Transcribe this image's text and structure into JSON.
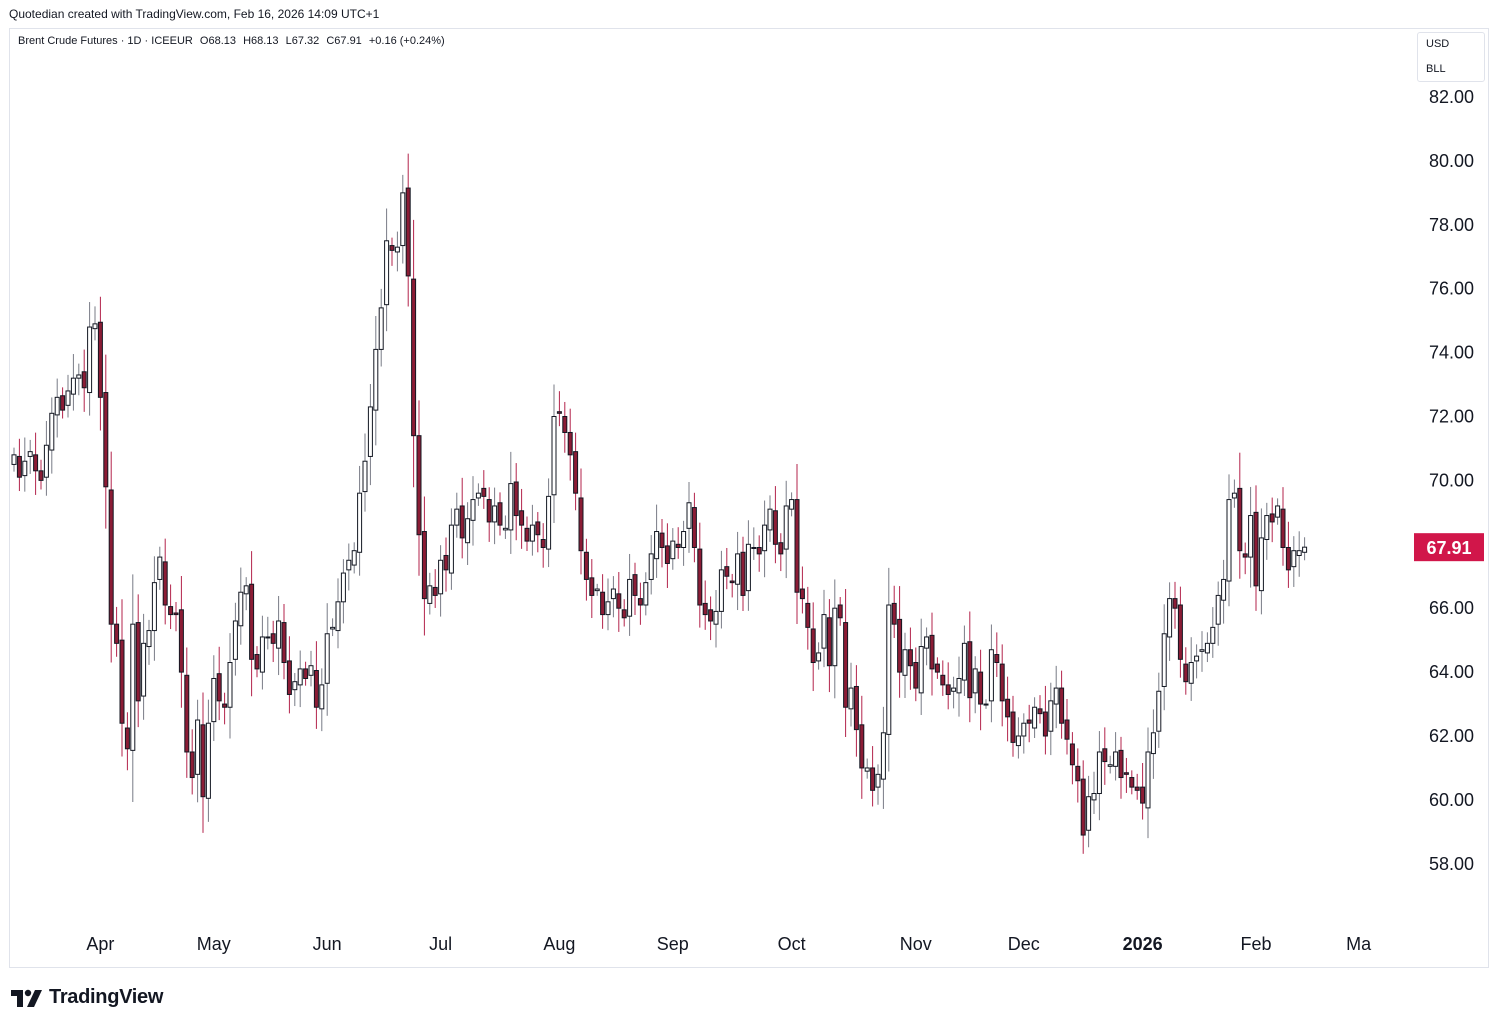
{
  "header": {
    "credit": "Quotedian created with TradingView.com, Feb 16, 2026 14:09 UTC+1"
  },
  "legend": {
    "symbol": "Brent Crude Futures · 1D · ICEEUR",
    "open": "O68.13",
    "high": "H68.13",
    "low": "L67.32",
    "close": "C67.91",
    "change": "+0.16 (+0.24%)"
  },
  "currency": {
    "unit": "USD",
    "sub_unit": "BLL"
  },
  "last_price": {
    "label": "67.91",
    "value": 67.91,
    "color": "#d1164a"
  },
  "brand": {
    "name": "TradingView"
  },
  "colors": {
    "up_body": "#ffffff",
    "down_body": "#8b1c35",
    "outline": "#131722",
    "down_wick": "#b3234b",
    "up_wick": "#787b86"
  },
  "chart_data": {
    "type": "candlestick",
    "title": "Brent Crude Futures · 1D · ICEEUR",
    "ylim": [
      56,
      84
    ],
    "y_ticks": [
      58,
      60,
      62,
      64,
      66,
      68,
      70,
      72,
      74,
      76,
      78,
      80,
      82
    ],
    "y_tick_labels": [
      "58.00",
      "60.00",
      "62.00",
      "64.00",
      "66.00",
      "68.00",
      "70.00",
      "72.00",
      "74.00",
      "76.00",
      "78.00",
      "80.00",
      "82.00"
    ],
    "x_labels": [
      {
        "label": "Apr",
        "index": 16,
        "bold": false
      },
      {
        "label": "May",
        "index": 37,
        "bold": false
      },
      {
        "label": "Jun",
        "index": 58,
        "bold": false
      },
      {
        "label": "Jul",
        "index": 79,
        "bold": false
      },
      {
        "label": "Aug",
        "index": 101,
        "bold": false
      },
      {
        "label": "Sep",
        "index": 122,
        "bold": false
      },
      {
        "label": "Oct",
        "index": 144,
        "bold": false
      },
      {
        "label": "Nov",
        "index": 167,
        "bold": false
      },
      {
        "label": "Dec",
        "index": 187,
        "bold": false
      },
      {
        "label": "2026",
        "index": 209,
        "bold": true
      },
      {
        "label": "Feb",
        "index": 230,
        "bold": false
      },
      {
        "label": "Ma",
        "index": 249,
        "bold": false
      }
    ],
    "closes": [
      70.8,
      70.1,
      70.6,
      70.9,
      70.3,
      70.0,
      71.1,
      72.1,
      72.6,
      72.2,
      72.8,
      73.2,
      73.3,
      72.9,
      74.8,
      74.9,
      72.6,
      69.8,
      65.5,
      64.9,
      62.4,
      61.6,
      65.5,
      63.1,
      64.9,
      65.3,
      66.8,
      67.6,
      66.1,
      65.8,
      65.8,
      64.0,
      61.5,
      60.7,
      62.5,
      60.1,
      62.4,
      63.8,
      63.1,
      62.9,
      64.3,
      65.6,
      66.5,
      66.7,
      64.4,
      64.1,
      65.1,
      65.1,
      64.9,
      65.6,
      64.3,
      63.3,
      63.7,
      64.1,
      63.8,
      64.2,
      62.9,
      63.6,
      65.2,
      65.4,
      66.2,
      67.1,
      67.5,
      67.8,
      69.6,
      70.6,
      72.3,
      74.1,
      75.4,
      77.5,
      77.2,
      77.3,
      79.0,
      76.4,
      71.4,
      68.3,
      66.3,
      66.7,
      66.4,
      67.5,
      67.2,
      68.6,
      69.1,
      68.2,
      68.8,
      69.4,
      69.6,
      69.5,
      68.7,
      69.2,
      68.6,
      68.5,
      69.9,
      68.9,
      68.6,
      68.1,
      68.6,
      68.3,
      67.9,
      69.5,
      72.0,
      72.1,
      71.5,
      70.8,
      69.6,
      67.8,
      66.9,
      66.4,
      66.6,
      65.8,
      66.2,
      66.6,
      66.0,
      65.7,
      66.9,
      66.4,
      66.1,
      66.8,
      67.7,
      68.4,
      67.9,
      67.4,
      68.1,
      67.9,
      68.4,
      69.3,
      67.9,
      66.1,
      65.8,
      65.6,
      65.9,
      67.2,
      67.0,
      66.8,
      67.7,
      66.4,
      68.0,
      67.9,
      67.7,
      68.6,
      69.1,
      68.0,
      67.7,
      69.2,
      69.4,
      66.5,
      66.3,
      65.4,
      64.3,
      64.6,
      65.8,
      64.2,
      66.0,
      65.7,
      62.9,
      63.5,
      62.2,
      61.0,
      61.0,
      60.3,
      60.8,
      62.1,
      66.1,
      65.5,
      64.0,
      64.7,
      64.2,
      63.5,
      64.8,
      65.1,
      64.1,
      64.0,
      63.6,
      63.3,
      63.5,
      63.8,
      64.9,
      63.2,
      64.1,
      63.0,
      63.0,
      64.7,
      64.3,
      63.1,
      62.6,
      61.8,
      62.0,
      62.4,
      62.4,
      62.9,
      62.7,
      62.0,
      63.1,
      63.5,
      62.4,
      61.9,
      61.1,
      60.6,
      58.9,
      60.1,
      60.2,
      61.5,
      61.2,
      61.1,
      61.5,
      60.7,
      60.8,
      60.4,
      60.3,
      59.9,
      61.5,
      62.1,
      63.4,
      65.2,
      66.3,
      66.0,
      64.4,
      63.7,
      64.3,
      64.5,
      64.7,
      64.9,
      65.4,
      66.4,
      66.9,
      69.4,
      69.6,
      67.8,
      67.6,
      68.9,
      66.7,
      68.2,
      68.9,
      68.7,
      69.2,
      67.9,
      67.2,
      67.8,
      67.8,
      67.91
    ],
    "candle_count": 250
  }
}
